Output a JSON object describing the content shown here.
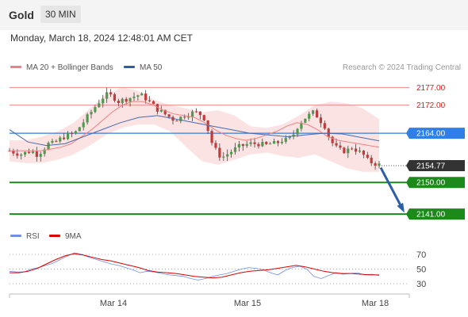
{
  "header": {
    "title": "Gold",
    "timeframe": "30 MIN"
  },
  "timestamp": "Monday, March 18, 2024 12:48:01 AM CET",
  "legend": {
    "ma20": {
      "label": "MA 20 + Bollinger Bands",
      "color": "#f08080"
    },
    "ma50": {
      "label": "MA 50",
      "color": "#2e5fa5"
    },
    "credit": "Research © 2024 Trading Central"
  },
  "rsi_legend": {
    "rsi": "RSI",
    "ma9": "9MA",
    "rsi_color": "#6f8fe0",
    "ma9_color": "#dd0000"
  },
  "colors": {
    "bull": "#4f9a4f",
    "bear": "#c03b3b",
    "support": "#1b8a1b",
    "pivot": "#2f7fe6",
    "resistance": "#ef8a8a",
    "arrow": "#2e5fa5"
  },
  "chart_data": [
    {
      "type": "line",
      "title": "Gold 30 MIN",
      "ylim": [
        2135.4,
        2185.2
      ],
      "x_ticks": [
        "Mar 14",
        "Mar 15",
        "Mar 18"
      ],
      "levels": [
        {
          "value": 2177.0,
          "label": "2177.00",
          "kind": "resistance"
        },
        {
          "value": 2172.0,
          "label": "2172.00",
          "kind": "resistance"
        },
        {
          "value": 2164.0,
          "label": "2164.00",
          "kind": "pivot"
        },
        {
          "value": 2154.77,
          "label": "2154.77",
          "kind": "last"
        },
        {
          "value": 2150.0,
          "label": "2150.00",
          "kind": "support"
        },
        {
          "value": 2141.0,
          "label": "2141.00",
          "kind": "support"
        }
      ],
      "close_path": [
        2159,
        2158.5,
        2158,
        2158.5,
        2159,
        2158,
        2159,
        2161,
        2161,
        2162,
        2163,
        2163.5,
        2164,
        2166,
        2168,
        2170,
        2172,
        2174,
        2175,
        2174.5,
        2173,
        2173.5,
        2174,
        2174.5,
        2175,
        2174,
        2172.5,
        2171,
        2170,
        2169,
        2168,
        2168,
        2169,
        2169.5,
        2170,
        2169.5,
        2168,
        2162,
        2159,
        2157,
        2158,
        2159,
        2160,
        2160.5,
        2161,
        2161,
        2161,
        2160.5,
        2161,
        2161,
        2162,
        2162,
        2163,
        2166,
        2168,
        2169,
        2170,
        2168,
        2166,
        2162,
        2160,
        2159,
        2159,
        2160,
        2159,
        2158,
        2156,
        2155.5,
        2155
      ],
      "ma20": [
        2159,
        2159,
        2159,
        2159,
        2159.5,
        2160,
        2161,
        2163,
        2165,
        2167.5,
        2170,
        2172,
        2173,
        2173,
        2172,
        2170.5,
        2169.5,
        2169,
        2168.5,
        2167,
        2165,
        2163.5,
        2162.5,
        2162,
        2162.5,
        2163.5,
        2164.5,
        2166,
        2167,
        2166.5,
        2165,
        2163,
        2162,
        2161.5,
        2161,
        2160.5,
        2160
      ],
      "ma50": [
        2165,
        2161.5,
        2160.5,
        2161,
        2163,
        2165,
        2167,
        2168.5,
        2169,
        2168,
        2167,
        2166,
        2165,
        2164,
        2163.5,
        2163,
        2163.5,
        2164,
        2163.8,
        2162.8,
        2161.8
      ],
      "bollinger_upper": [
        2162,
        2162,
        2163,
        2164.5,
        2167,
        2171,
        2175,
        2177,
        2176,
        2173.5,
        2172,
        2171,
        2170,
        2170.5,
        2169,
        2166,
        2165.5,
        2166.5,
        2169,
        2172,
        2173,
        2172.5,
        2171,
        2168
      ],
      "bollinger_lower": [
        2156,
        2155.5,
        2155.5,
        2156.5,
        2158,
        2160.5,
        2163.5,
        2165.5,
        2166.5,
        2166.5,
        2164.5,
        2160,
        2156,
        2155,
        2156.5,
        2158,
        2158.5,
        2157.5,
        2157,
        2158,
        2156,
        2154,
        2153,
        2153
      ]
    },
    {
      "type": "line",
      "title": "RSI",
      "ylim": [
        30,
        70
      ],
      "y_ticks": [
        "70",
        "50",
        "30"
      ],
      "series": [
        {
          "name": "RSI",
          "values": [
            47,
            46,
            46,
            50,
            52,
            55,
            58,
            63,
            68,
            72,
            70,
            66,
            63,
            60,
            57,
            55,
            52,
            49,
            45,
            47,
            46,
            44,
            42,
            41,
            40,
            37,
            35,
            37,
            40,
            42,
            44,
            47,
            50,
            52,
            51,
            49,
            45,
            42,
            48,
            52,
            54,
            50,
            40,
            37,
            41,
            45,
            43,
            44,
            45,
            42,
            43,
            41
          ]
        },
        {
          "name": "9MA",
          "values": [
            45,
            45,
            47,
            51,
            57,
            63,
            68,
            71,
            69,
            66,
            63,
            61,
            58,
            55,
            52,
            48,
            46,
            45,
            44,
            42,
            40,
            39,
            38,
            39,
            42,
            45,
            47,
            48,
            49,
            51,
            53,
            55,
            53,
            50,
            47,
            45,
            44,
            44,
            43,
            42,
            42
          ]
        }
      ]
    }
  ]
}
